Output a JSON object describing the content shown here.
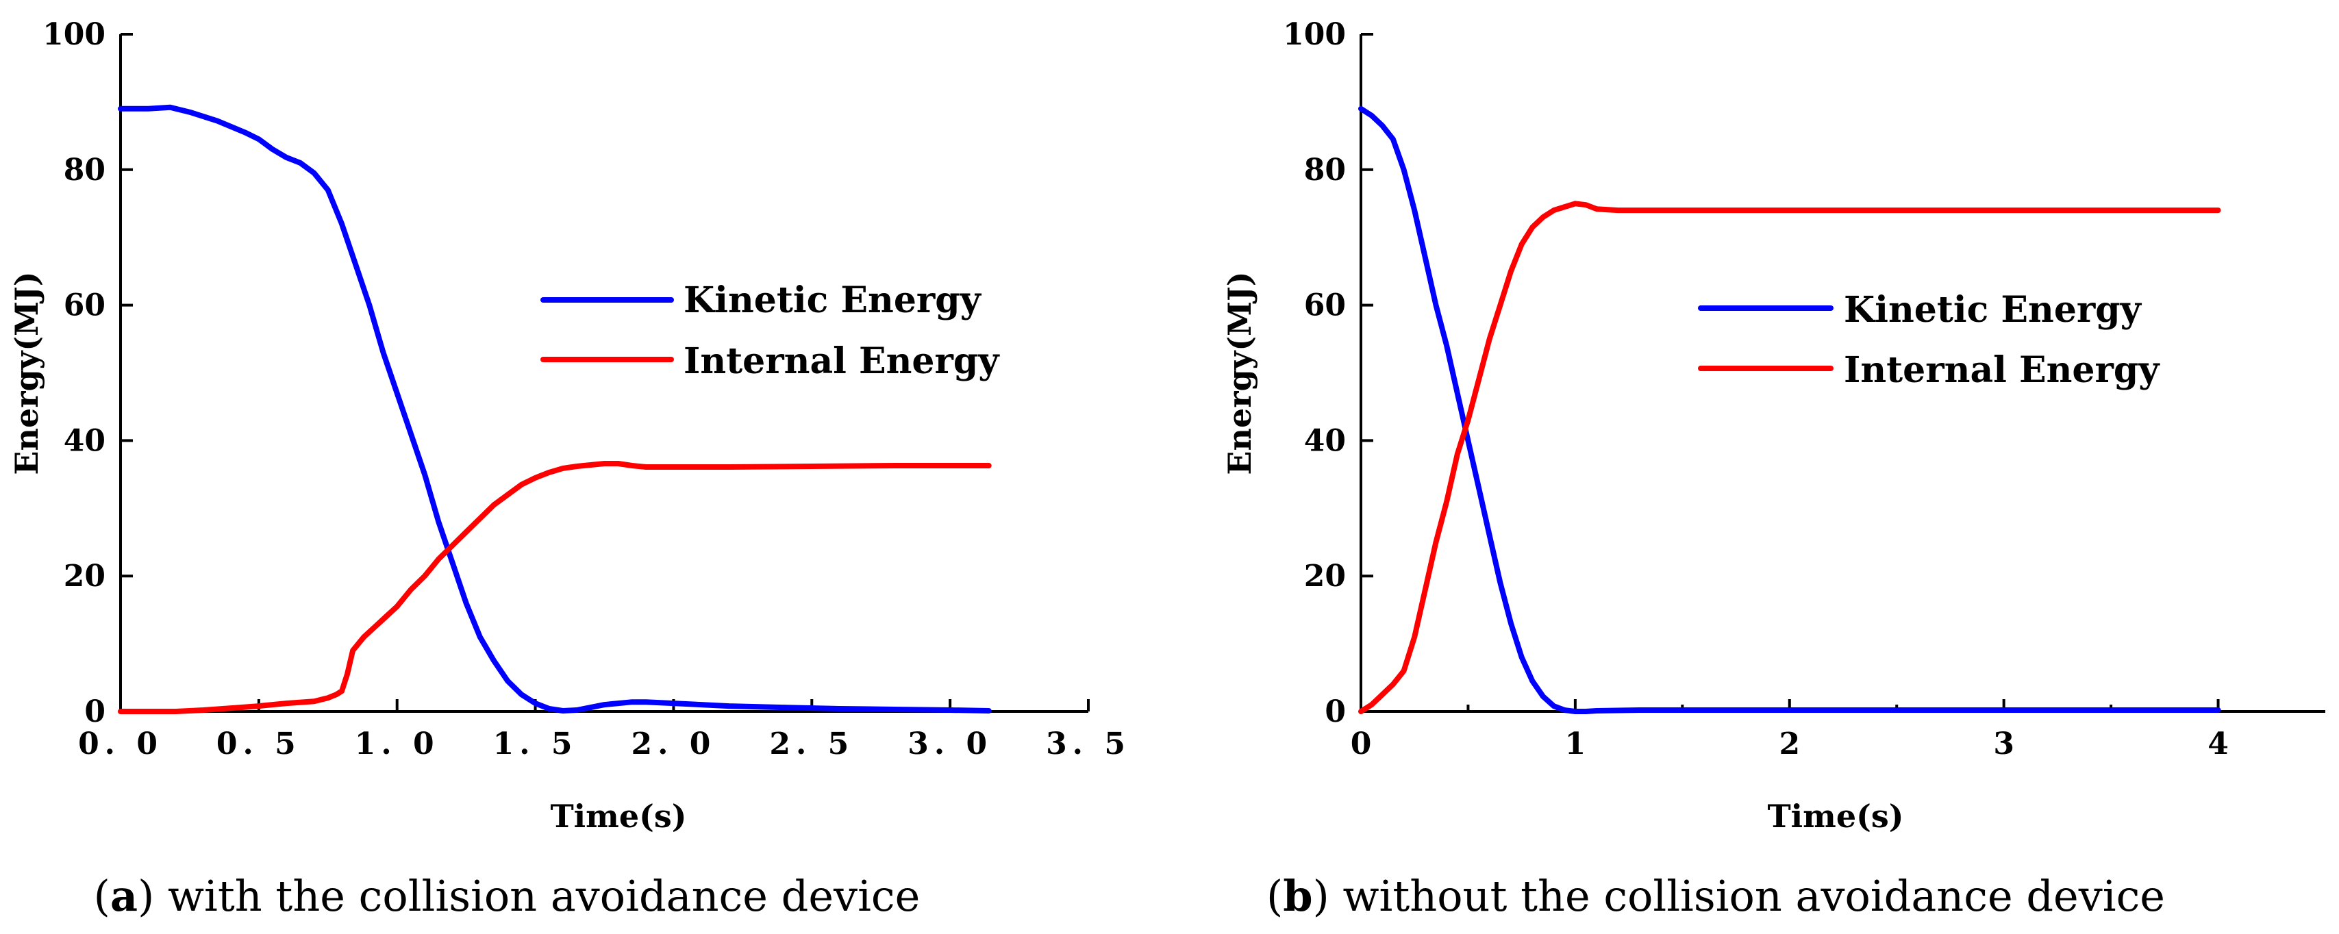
{
  "chart_data": [
    {
      "id": "a",
      "type": "line",
      "caption_letter": "a",
      "caption_text": "with the collision avoidance device",
      "xlabel": "Time(s)",
      "ylabel": "Energy(MJ)",
      "xlim": [
        0,
        3.5
      ],
      "ylim": [
        0,
        100
      ],
      "xticks": [
        0,
        0.5,
        1,
        1.5,
        2,
        2.5,
        3,
        3.5
      ],
      "xtick_labels": [
        "0. 0",
        "0. 5",
        "1. 0",
        "1. 5",
        "2. 0",
        "2. 5",
        "3. 0",
        "3. 5"
      ],
      "yticks": [
        0,
        20,
        40,
        60,
        80,
        100
      ],
      "ytick_labels": [
        "0",
        "20",
        "40",
        "60",
        "80",
        "100"
      ],
      "legend_position": "center-right",
      "series": [
        {
          "name": "Kinetic Energy",
          "color": "#0000ff",
          "x": [
            0,
            0.1,
            0.18,
            0.25,
            0.35,
            0.45,
            0.5,
            0.55,
            0.6,
            0.65,
            0.7,
            0.75,
            0.8,
            0.85,
            0.9,
            0.95,
            1.0,
            1.05,
            1.1,
            1.15,
            1.2,
            1.25,
            1.3,
            1.35,
            1.4,
            1.45,
            1.5,
            1.55,
            1.6,
            1.65,
            1.7,
            1.75,
            1.8,
            1.85,
            1.9,
            2.0,
            2.1,
            2.2,
            2.4,
            2.6,
            2.8,
            3.0,
            3.14
          ],
          "y": [
            89,
            89,
            89.2,
            88.5,
            87.2,
            85.5,
            84.5,
            83,
            81.8,
            81,
            79.5,
            77,
            72,
            66,
            60,
            53,
            47,
            41,
            35,
            28,
            22,
            16,
            11,
            7.5,
            4.5,
            2.5,
            1.2,
            0.4,
            0.1,
            0.2,
            0.6,
            1.0,
            1.2,
            1.4,
            1.4,
            1.2,
            1.0,
            0.8,
            0.6,
            0.4,
            0.3,
            0.2,
            0.1
          ]
        },
        {
          "name": "Internal Energy",
          "color": "#ff0000",
          "x": [
            0,
            0.2,
            0.3,
            0.4,
            0.5,
            0.6,
            0.7,
            0.75,
            0.78,
            0.8,
            0.82,
            0.84,
            0.88,
            0.92,
            0.96,
            1.0,
            1.05,
            1.1,
            1.15,
            1.2,
            1.25,
            1.3,
            1.35,
            1.4,
            1.45,
            1.5,
            1.55,
            1.6,
            1.65,
            1.7,
            1.75,
            1.8,
            1.85,
            1.9,
            2.0,
            2.2,
            2.5,
            2.8,
            3.0,
            3.14
          ],
          "y": [
            0,
            0,
            0.2,
            0.5,
            0.8,
            1.2,
            1.5,
            2,
            2.5,
            3,
            5.5,
            9,
            11,
            12.5,
            14,
            15.5,
            18,
            20,
            22.5,
            24.5,
            26.5,
            28.5,
            30.5,
            32,
            33.5,
            34.5,
            35.3,
            35.9,
            36.2,
            36.4,
            36.6,
            36.6,
            36.3,
            36.1,
            36.1,
            36.1,
            36.2,
            36.3,
            36.3,
            36.3
          ]
        }
      ]
    },
    {
      "id": "b",
      "type": "line",
      "caption_letter": "b",
      "caption_text": "without the collision avoidance device",
      "xlabel": "Time(s)",
      "ylabel": "Energy(MJ)",
      "xlim": [
        0,
        4.5
      ],
      "ylim": [
        0,
        100
      ],
      "xticks": [
        0,
        1,
        2,
        3,
        4
      ],
      "xtick_labels": [
        "0",
        "1",
        "2",
        "3",
        "4"
      ],
      "minor_xticks": [
        0.5,
        1.5,
        2.5,
        3.5
      ],
      "yticks": [
        0,
        20,
        40,
        60,
        80,
        100
      ],
      "ytick_labels": [
        "0",
        "20",
        "40",
        "60",
        "80",
        "100"
      ],
      "legend_position": "center-right",
      "series": [
        {
          "name": "Kinetic Energy",
          "color": "#0000ff",
          "x": [
            0,
            0.05,
            0.1,
            0.15,
            0.2,
            0.25,
            0.3,
            0.35,
            0.4,
            0.45,
            0.5,
            0.55,
            0.6,
            0.65,
            0.7,
            0.75,
            0.8,
            0.85,
            0.9,
            0.95,
            1.0,
            1.05,
            1.1,
            1.3,
            1.6,
            2.0,
            2.5,
            3.0,
            3.5,
            4.0
          ],
          "y": [
            89,
            88,
            86.5,
            84.5,
            80,
            74,
            67,
            60,
            54,
            47,
            40,
            33,
            26,
            19,
            13,
            8,
            4.5,
            2.2,
            0.8,
            0.2,
            0,
            0,
            0.1,
            0.2,
            0.2,
            0.2,
            0.2,
            0.2,
            0.2,
            0.2
          ]
        },
        {
          "name": "Internal Energy",
          "color": "#ff0000",
          "x": [
            0,
            0.05,
            0.1,
            0.15,
            0.2,
            0.25,
            0.3,
            0.35,
            0.4,
            0.45,
            0.5,
            0.55,
            0.6,
            0.65,
            0.7,
            0.75,
            0.8,
            0.85,
            0.9,
            0.95,
            1.0,
            1.05,
            1.1,
            1.2,
            1.5,
            2.0,
            2.5,
            3.0,
            3.5,
            4.0
          ],
          "y": [
            0,
            1,
            2.5,
            4,
            6,
            11,
            18,
            25,
            31,
            38,
            43,
            49,
            55,
            60,
            65,
            69,
            71.5,
            73,
            74,
            74.5,
            75,
            74.8,
            74.2,
            74,
            74,
            74,
            74,
            74,
            74,
            74
          ]
        }
      ]
    }
  ]
}
